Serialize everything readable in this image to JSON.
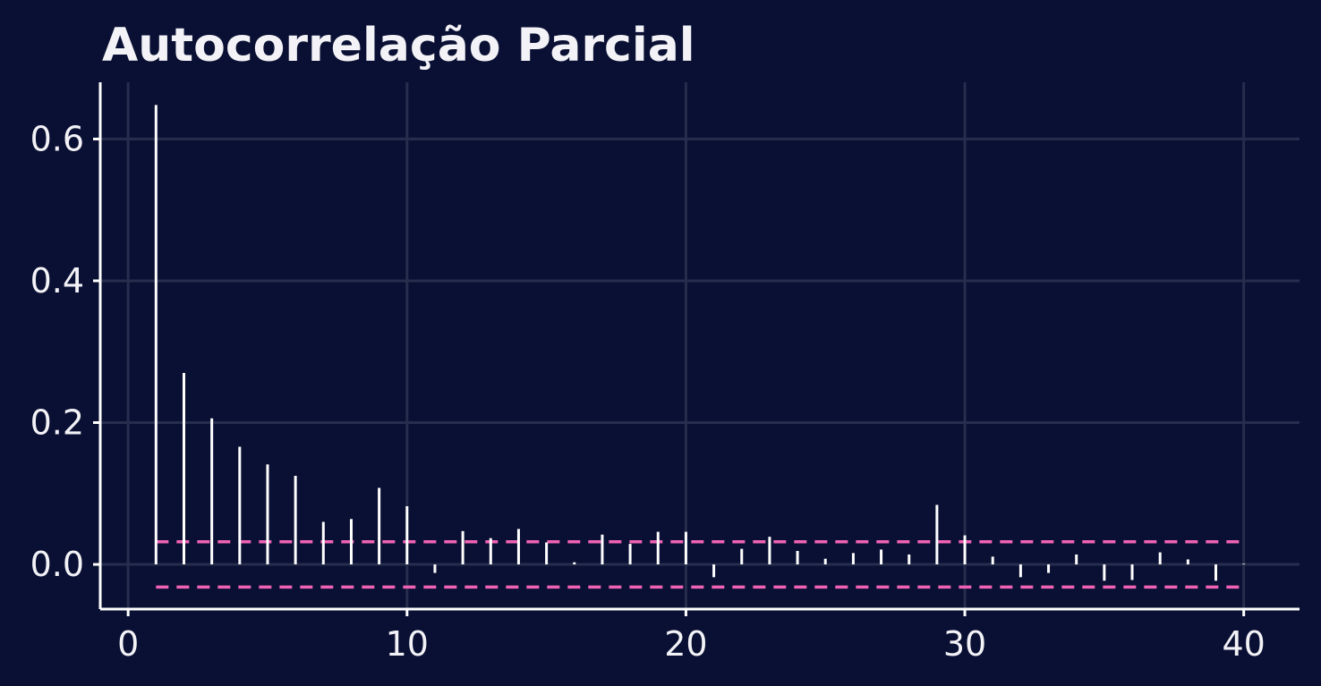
{
  "colors": {
    "background": "#0a1033",
    "grid": "#262d4d",
    "axis": "#ffffff",
    "bars": "#ffffff",
    "text": "#f2f2f7",
    "confidence": "#f062b4"
  },
  "chart_data": {
    "type": "bar",
    "title": "Autocorrelação Parcial",
    "xlabel": "",
    "ylabel": "",
    "xlim": [
      -1,
      42
    ],
    "ylim": [
      -0.063,
      0.68
    ],
    "x_ticks": [
      0,
      10,
      20,
      30,
      40
    ],
    "x_tick_labels": [
      "0",
      "10",
      "20",
      "30",
      "40"
    ],
    "y_ticks": [
      0.0,
      0.2,
      0.4,
      0.6
    ],
    "y_tick_labels": [
      "0.0",
      "0.2",
      "0.4",
      "0.6"
    ],
    "grid": true,
    "confidence_band": [
      -0.032,
      0.032
    ],
    "lags": [
      1,
      2,
      3,
      4,
      5,
      6,
      7,
      8,
      9,
      10,
      11,
      12,
      13,
      14,
      15,
      16,
      17,
      18,
      19,
      20,
      21,
      22,
      23,
      24,
      25,
      26,
      27,
      28,
      29,
      30,
      31,
      32,
      33,
      34,
      35,
      36,
      37,
      38,
      39,
      40
    ],
    "values": [
      0.648,
      0.27,
      0.206,
      0.166,
      0.141,
      0.125,
      0.06,
      0.064,
      0.108,
      0.082,
      -0.012,
      0.047,
      0.037,
      0.05,
      0.031,
      0.003,
      0.042,
      0.029,
      0.046,
      0.046,
      -0.018,
      0.022,
      0.039,
      0.019,
      0.008,
      0.016,
      0.021,
      0.014,
      0.084,
      0.041,
      0.011,
      -0.018,
      -0.012,
      0.014,
      -0.023,
      -0.022,
      0.017,
      0.007,
      -0.023,
      0.001
    ]
  }
}
